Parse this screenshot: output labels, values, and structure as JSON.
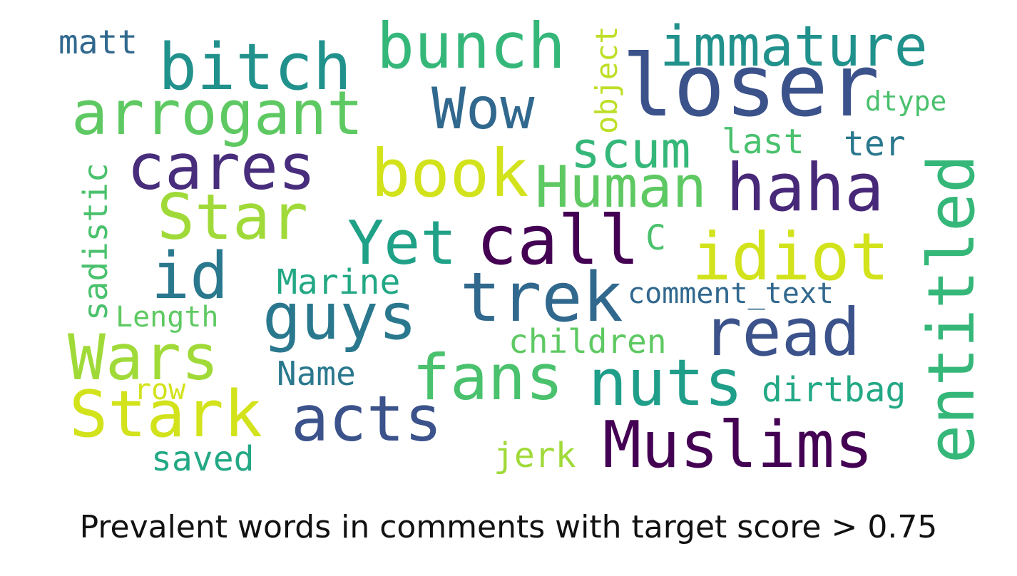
{
  "caption": "Prevalent words in comments with target score > 0.75",
  "words": [
    {
      "text": "loser",
      "color": "#3b528b"
    },
    {
      "text": "Muslims",
      "color": "#440154"
    },
    {
      "text": "immature",
      "color": "#21918c"
    },
    {
      "text": "bitch",
      "color": "#21918c"
    },
    {
      "text": "bunch",
      "color": "#35b779"
    },
    {
      "text": "arrogant",
      "color": "#5ec962"
    },
    {
      "text": "Wow",
      "color": "#31688e"
    },
    {
      "text": "cares",
      "color": "#472d7b"
    },
    {
      "text": "book",
      "color": "#d2e21b"
    },
    {
      "text": "Human",
      "color": "#5ec962"
    },
    {
      "text": "haha",
      "color": "#482878"
    },
    {
      "text": "scum",
      "color": "#35b779"
    },
    {
      "text": "Star",
      "color": "#a0da39"
    },
    {
      "text": "Yet",
      "color": "#1fa187"
    },
    {
      "text": "call",
      "color": "#440154"
    },
    {
      "text": "idiot",
      "color": "#d2e21b"
    },
    {
      "text": "entitled",
      "color": "#35b779"
    },
    {
      "text": "id",
      "color": "#2a788e"
    },
    {
      "text": "trek",
      "color": "#31688e"
    },
    {
      "text": "guys",
      "color": "#2a788e"
    },
    {
      "text": "read",
      "color": "#3b528b"
    },
    {
      "text": "Wars",
      "color": "#a0da39"
    },
    {
      "text": "fans",
      "color": "#4ac16d"
    },
    {
      "text": "nuts",
      "color": "#1f9e89"
    },
    {
      "text": "Stark",
      "color": "#d2e21b"
    },
    {
      "text": "acts",
      "color": "#3b528b"
    },
    {
      "text": "matt",
      "color": "#31688e"
    },
    {
      "text": "object",
      "color": "#bddf26"
    },
    {
      "text": "dtype",
      "color": "#4ac16d"
    },
    {
      "text": "last",
      "color": "#4ac16d"
    },
    {
      "text": "ter",
      "color": "#2a788e"
    },
    {
      "text": "sadistic",
      "color": "#4ac16d"
    },
    {
      "text": "C",
      "color": "#4ac16d"
    },
    {
      "text": "Marine",
      "color": "#22a884"
    },
    {
      "text": "comment_text",
      "color": "#31688e"
    },
    {
      "text": "Length",
      "color": "#5ec962"
    },
    {
      "text": "children",
      "color": "#5ec962"
    },
    {
      "text": "Name",
      "color": "#2a788e"
    },
    {
      "text": "dirtbag",
      "color": "#22a884"
    },
    {
      "text": "row",
      "color": "#d2e21b"
    },
    {
      "text": "saved",
      "color": "#22a884"
    },
    {
      "text": "jerk",
      "color": "#a0da39"
    }
  ]
}
